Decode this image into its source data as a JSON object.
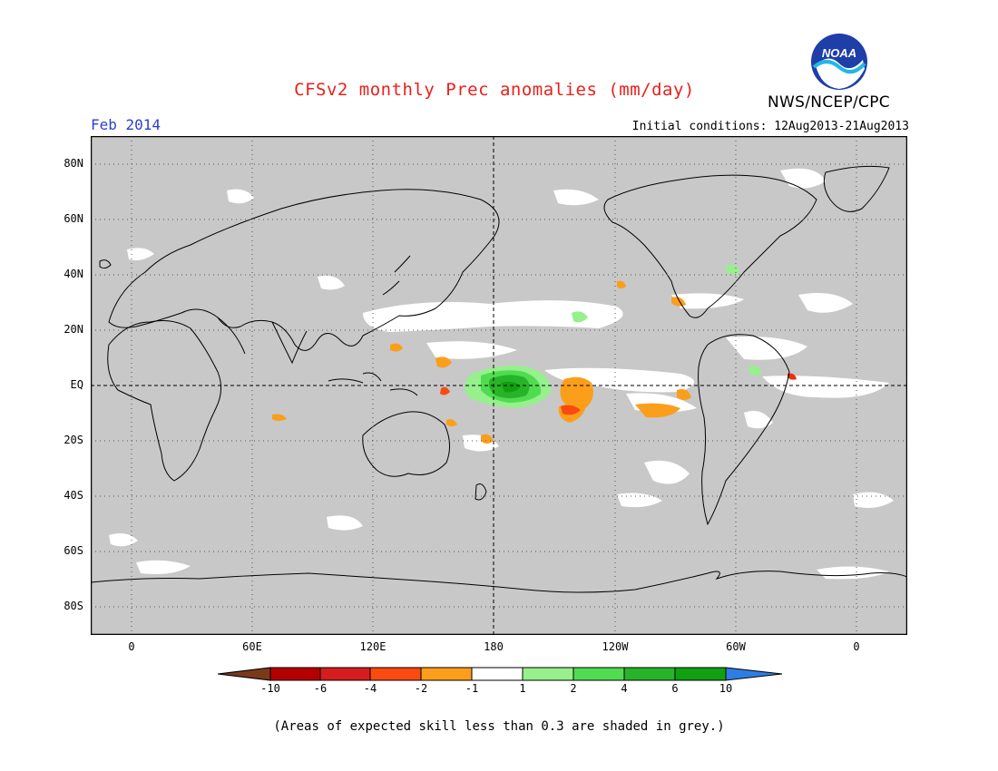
{
  "title": "CFSv2 monthly Prec anomalies (mm/day)",
  "month": "Feb 2014",
  "initial_conditions": "Initial conditions: 12Aug2013-21Aug2013",
  "agency": "NWS/NCEP/CPC",
  "logo_text": "NOAA",
  "footnote": "(Areas of expected skill less than 0.3 are shaded in grey.)",
  "map": {
    "projection": "equirectangular",
    "lon_range": [
      -20,
      340
    ],
    "lat_range": [
      -90,
      90
    ],
    "lat_labels": [
      "80N",
      "60N",
      "40N",
      "20N",
      "EQ",
      "20S",
      "40S",
      "60S",
      "80S"
    ],
    "lon_labels": [
      "0",
      "60E",
      "120E",
      "180",
      "120W",
      "60W",
      "0"
    ],
    "grey_color": "#c8c8c8",
    "land_outline_color": "#000000",
    "grid": "dotted"
  },
  "colorbar": {
    "labels": [
      "-10",
      "-6",
      "-4",
      "-2",
      "-1",
      "1",
      "2",
      "4",
      "6",
      "10"
    ],
    "colors": [
      "#7a3a1a",
      "#b40000",
      "#d61d1d",
      "#fa4a12",
      "#fb9e1a",
      "#ffffff",
      "#96f08c",
      "#50dc50",
      "#28b428",
      "#10a010",
      "#2e7de4"
    ]
  },
  "anomaly_regions": [
    {
      "name": "central-pacific-wet",
      "lon": 190,
      "lat": -2,
      "level": "4 to 6"
    },
    {
      "name": "east-pacific-dry",
      "lon": 215,
      "lat": -7,
      "level": "-2 to -4"
    },
    {
      "name": "east-pacific-dry-2",
      "lon": 245,
      "lat": -9,
      "level": "-1 to -2"
    },
    {
      "name": "north-pacific-dry-band",
      "lon": 160,
      "lat": 25,
      "level": "-1 to 1"
    }
  ]
}
